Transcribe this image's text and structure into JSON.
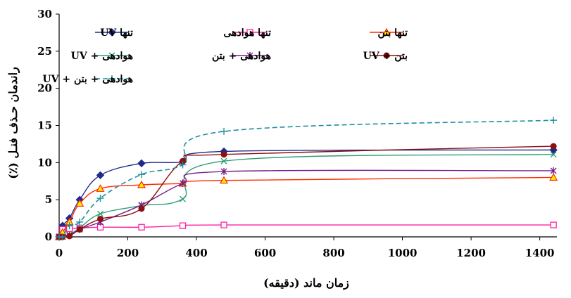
{
  "chart_data": {
    "type": "line",
    "xlabel": "زمان ماند (دقیقه)",
    "ylabel": "راندمان حـذف فنـل (٪)",
    "xlim": [
      0,
      1450
    ],
    "ylim": [
      0,
      30
    ],
    "xticks": [
      0,
      200,
      400,
      600,
      800,
      1000,
      1200,
      1400
    ],
    "yticks": [
      0,
      5,
      10,
      15,
      20,
      25,
      30
    ],
    "grid": false,
    "legend_position": "top",
    "series": [
      {
        "name": "تنها UV",
        "color": "#1f2a8c",
        "marker": "diamond",
        "dash": "solid",
        "x": [
          0,
          10,
          30,
          60,
          120,
          240,
          360,
          480,
          1440
        ],
        "y": [
          0,
          1.5,
          2.5,
          5,
          8.3,
          9.9,
          10.1,
          11.5,
          11.7
        ]
      },
      {
        "name": "تنها هوادهی",
        "color": "#ff1fa0",
        "marker": "square-open",
        "dash": "solid",
        "x": [
          0,
          10,
          30,
          60,
          120,
          240,
          360,
          480,
          1440
        ],
        "y": [
          0,
          1,
          1.1,
          1.2,
          1.3,
          1.3,
          1.5,
          1.6,
          1.6
        ]
      },
      {
        "name": "تنها بتن",
        "color": "#ff2a00",
        "marker": "triangle",
        "dash": "solid",
        "x": [
          0,
          10,
          30,
          60,
          120,
          240,
          360,
          480,
          1440
        ],
        "y": [
          0,
          0.6,
          2,
          4.5,
          6.5,
          7,
          7.2,
          7.6,
          8
        ]
      },
      {
        "name": "هوادهی + UV",
        "color": "#2e9e74",
        "marker": "x",
        "dash": "solid",
        "x": [
          0,
          10,
          30,
          60,
          120,
          240,
          360,
          480,
          1440
        ],
        "y": [
          0,
          0,
          0.3,
          1.2,
          3.1,
          4.2,
          5.1,
          10.2,
          11.1
        ]
      },
      {
        "name": "هوادهی + بتن",
        "color": "#7a1e8c",
        "marker": "star",
        "dash": "solid",
        "x": [
          0,
          10,
          30,
          60,
          120,
          240,
          360,
          480,
          1440
        ],
        "y": [
          0,
          0,
          0.2,
          1,
          2,
          4.3,
          7.2,
          8.8,
          8.9
        ]
      },
      {
        "name": "بتن + UV",
        "color": "#8c1010",
        "marker": "circle",
        "dash": "solid",
        "x": [
          0,
          10,
          30,
          60,
          120,
          240,
          360,
          480,
          1440
        ],
        "y": [
          0,
          0,
          0.1,
          1,
          2.4,
          3.8,
          10.2,
          11.1,
          12.2
        ]
      },
      {
        "name": "هوادهی + بتن + UV",
        "color": "#1e8f9e",
        "marker": "plus",
        "dash": "dashed",
        "x": [
          0,
          10,
          30,
          60,
          120,
          240,
          360,
          480,
          1440
        ],
        "y": [
          0,
          0,
          1.5,
          2,
          5.2,
          8.4,
          9.7,
          14.2,
          15.7
        ]
      }
    ]
  }
}
